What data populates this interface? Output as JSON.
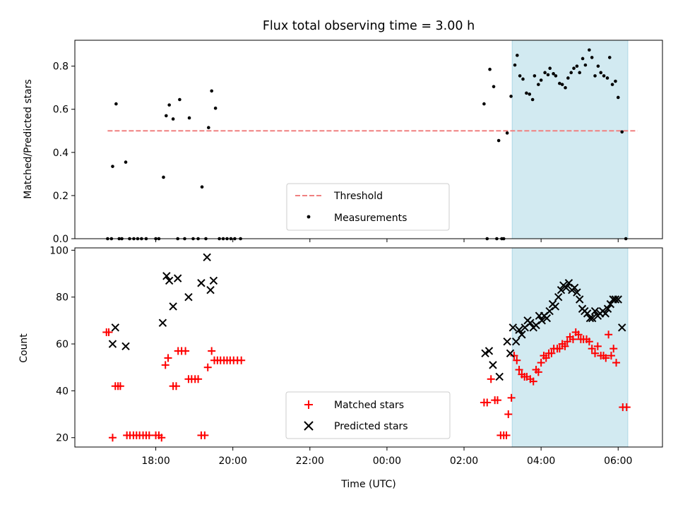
{
  "chart_data": [
    {
      "type": "scatter",
      "title": "Flux total observing time = 3.00 h",
      "xlabel": "",
      "ylabel": "Matched/Predicted stars",
      "ylim": [
        0,
        0.92
      ],
      "xlim_hours": [
        15.9,
        31.15
      ],
      "yticks": [
        "0.0",
        "0.2",
        "0.4",
        "0.6",
        "0.8"
      ],
      "xticks": [
        "18:00",
        "20:00",
        "22:00",
        "00:00",
        "02:00",
        "04:00",
        "06:00"
      ],
      "shaded_span": {
        "start": "03:15",
        "end": "06:15",
        "color": "#add8e6"
      },
      "threshold": {
        "name": "Threshold",
        "value": 0.5,
        "x_range": [
          "16:45",
          "06:30"
        ],
        "color": "#f08080"
      },
      "legend": {
        "placement": "lower-center",
        "entries": [
          "Threshold",
          "Measurements"
        ]
      },
      "series": [
        {
          "name": "Measurements",
          "color": "#000000",
          "marker": "dot",
          "points": [
            [
              16.75,
              0.0
            ],
            [
              16.85,
              0.0
            ],
            [
              16.88,
              0.335
            ],
            [
              16.97,
              0.625
            ],
            [
              17.05,
              0.0
            ],
            [
              17.12,
              0.0
            ],
            [
              17.22,
              0.355
            ],
            [
              17.32,
              0.0
            ],
            [
              17.43,
              0.0
            ],
            [
              17.53,
              0.0
            ],
            [
              17.63,
              0.0
            ],
            [
              17.75,
              0.0
            ],
            [
              18.0,
              0.0
            ],
            [
              18.08,
              0.0
            ],
            [
              18.2,
              0.285
            ],
            [
              18.27,
              0.57
            ],
            [
              18.35,
              0.62
            ],
            [
              18.45,
              0.555
            ],
            [
              18.57,
              0.0
            ],
            [
              18.62,
              0.645
            ],
            [
              18.75,
              0.0
            ],
            [
              18.87,
              0.56
            ],
            [
              18.97,
              0.0
            ],
            [
              19.1,
              0.0
            ],
            [
              19.2,
              0.24
            ],
            [
              19.3,
              0.0
            ],
            [
              19.37,
              0.515
            ],
            [
              19.45,
              0.685
            ],
            [
              19.55,
              0.605
            ],
            [
              19.65,
              0.0
            ],
            [
              19.75,
              0.0
            ],
            [
              19.85,
              0.0
            ],
            [
              19.95,
              0.0
            ],
            [
              20.05,
              0.0
            ],
            [
              20.2,
              0.0
            ],
            [
              26.52,
              0.625
            ],
            [
              26.6,
              0.0
            ],
            [
              26.67,
              0.785
            ],
            [
              26.77,
              0.705
            ],
            [
              26.85,
              0.0
            ],
            [
              26.9,
              0.455
            ],
            [
              26.98,
              0.0
            ],
            [
              27.03,
              0.0
            ],
            [
              27.12,
              0.49
            ],
            [
              27.22,
              0.66
            ],
            [
              27.32,
              0.805
            ],
            [
              27.38,
              0.85
            ],
            [
              27.45,
              0.755
            ],
            [
              27.53,
              0.74
            ],
            [
              27.62,
              0.675
            ],
            [
              27.7,
              0.67
            ],
            [
              27.78,
              0.645
            ],
            [
              27.83,
              0.755
            ],
            [
              27.93,
              0.715
            ],
            [
              28.0,
              0.735
            ],
            [
              28.1,
              0.77
            ],
            [
              28.18,
              0.76
            ],
            [
              28.23,
              0.79
            ],
            [
              28.32,
              0.765
            ],
            [
              28.38,
              0.755
            ],
            [
              28.48,
              0.72
            ],
            [
              28.55,
              0.715
            ],
            [
              28.63,
              0.7
            ],
            [
              28.7,
              0.745
            ],
            [
              28.78,
              0.77
            ],
            [
              28.85,
              0.79
            ],
            [
              28.93,
              0.8
            ],
            [
              29.0,
              0.77
            ],
            [
              29.08,
              0.835
            ],
            [
              29.15,
              0.805
            ],
            [
              29.25,
              0.875
            ],
            [
              29.32,
              0.84
            ],
            [
              29.4,
              0.755
            ],
            [
              29.48,
              0.8
            ],
            [
              29.55,
              0.77
            ],
            [
              29.63,
              0.755
            ],
            [
              29.72,
              0.745
            ],
            [
              29.78,
              0.84
            ],
            [
              29.85,
              0.715
            ],
            [
              29.93,
              0.73
            ],
            [
              30.0,
              0.655
            ],
            [
              30.1,
              0.495
            ],
            [
              30.2,
              0.0
            ]
          ]
        }
      ]
    },
    {
      "type": "scatter",
      "title": "",
      "xlabel": "Time (UTC)",
      "ylabel": "Count",
      "ylim": [
        16,
        101
      ],
      "xlim_hours": [
        15.9,
        31.15
      ],
      "yticks": [
        "20",
        "40",
        "60",
        "80",
        "100"
      ],
      "xticks": [
        "18:00",
        "20:00",
        "22:00",
        "00:00",
        "02:00",
        "04:00",
        "06:00"
      ],
      "shaded_span": {
        "start": "03:15",
        "end": "06:15",
        "color": "#add8e6"
      },
      "legend": {
        "placement": "lower-center",
        "entries": [
          "Matched stars",
          "Predicted stars"
        ]
      },
      "series": [
        {
          "name": "Matched stars",
          "color": "#ff0000",
          "marker": "plus",
          "points": [
            [
              16.72,
              65
            ],
            [
              16.78,
              65
            ],
            [
              16.88,
              20
            ],
            [
              16.95,
              42
            ],
            [
              17.02,
              42
            ],
            [
              17.08,
              42
            ],
            [
              17.25,
              21
            ],
            [
              17.33,
              21
            ],
            [
              17.42,
              21
            ],
            [
              17.5,
              21
            ],
            [
              17.58,
              21
            ],
            [
              17.67,
              21
            ],
            [
              17.75,
              21
            ],
            [
              17.83,
              21
            ],
            [
              18.0,
              21
            ],
            [
              18.08,
              21
            ],
            [
              18.15,
              20
            ],
            [
              18.25,
              51
            ],
            [
              18.32,
              54
            ],
            [
              18.45,
              42
            ],
            [
              18.53,
              42
            ],
            [
              18.58,
              57
            ],
            [
              18.67,
              57
            ],
            [
              18.77,
              57
            ],
            [
              18.85,
              45
            ],
            [
              18.93,
              45
            ],
            [
              19.02,
              45
            ],
            [
              19.1,
              45
            ],
            [
              19.18,
              21
            ],
            [
              19.27,
              21
            ],
            [
              19.35,
              50
            ],
            [
              19.45,
              57
            ],
            [
              19.52,
              53
            ],
            [
              19.6,
              53
            ],
            [
              19.68,
              53
            ],
            [
              19.77,
              53
            ],
            [
              19.85,
              53
            ],
            [
              19.93,
              53
            ],
            [
              20.02,
              53
            ],
            [
              20.12,
              53
            ],
            [
              20.22,
              53
            ],
            [
              26.52,
              35
            ],
            [
              26.6,
              35
            ],
            [
              26.7,
              45
            ],
            [
              26.8,
              36
            ],
            [
              26.87,
              36
            ],
            [
              26.95,
              21
            ],
            [
              27.03,
              21
            ],
            [
              27.1,
              21
            ],
            [
              27.15,
              30
            ],
            [
              27.23,
              37
            ],
            [
              27.3,
              55
            ],
            [
              27.37,
              53
            ],
            [
              27.43,
              49
            ],
            [
              27.5,
              47
            ],
            [
              27.57,
              46
            ],
            [
              27.63,
              46
            ],
            [
              27.72,
              45
            ],
            [
              27.8,
              44
            ],
            [
              27.87,
              49
            ],
            [
              27.93,
              48
            ],
            [
              28.0,
              52
            ],
            [
              28.07,
              55
            ],
            [
              28.13,
              54
            ],
            [
              28.2,
              56
            ],
            [
              28.27,
              56
            ],
            [
              28.33,
              58
            ],
            [
              28.42,
              58
            ],
            [
              28.48,
              58
            ],
            [
              28.55,
              60
            ],
            [
              28.62,
              59
            ],
            [
              28.68,
              61
            ],
            [
              28.75,
              63
            ],
            [
              28.83,
              62
            ],
            [
              28.9,
              65
            ],
            [
              28.97,
              64
            ],
            [
              29.03,
              62
            ],
            [
              29.1,
              62
            ],
            [
              29.18,
              62
            ],
            [
              29.25,
              61
            ],
            [
              29.32,
              58
            ],
            [
              29.4,
              56
            ],
            [
              29.47,
              59
            ],
            [
              29.55,
              55
            ],
            [
              29.62,
              55
            ],
            [
              29.68,
              54
            ],
            [
              29.75,
              64
            ],
            [
              29.82,
              55
            ],
            [
              29.88,
              58
            ],
            [
              29.95,
              52
            ],
            [
              30.12,
              33
            ],
            [
              30.22,
              33
            ]
          ]
        },
        {
          "name": "Predicted stars",
          "color": "#000000",
          "marker": "x",
          "points": [
            [
              16.88,
              60
            ],
            [
              16.95,
              67
            ],
            [
              17.22,
              59
            ],
            [
              18.18,
              69
            ],
            [
              18.28,
              89
            ],
            [
              18.35,
              87
            ],
            [
              18.45,
              76
            ],
            [
              18.57,
              88
            ],
            [
              18.85,
              80
            ],
            [
              19.18,
              86
            ],
            [
              19.33,
              97
            ],
            [
              19.42,
              83
            ],
            [
              19.5,
              87
            ],
            [
              26.55,
              56
            ],
            [
              26.65,
              57
            ],
            [
              26.75,
              51
            ],
            [
              26.92,
              46
            ],
            [
              27.12,
              61
            ],
            [
              27.2,
              56
            ],
            [
              27.27,
              67
            ],
            [
              27.35,
              61
            ],
            [
              27.43,
              66
            ],
            [
              27.5,
              64
            ],
            [
              27.58,
              67
            ],
            [
              27.65,
              70
            ],
            [
              27.72,
              69
            ],
            [
              27.8,
              67
            ],
            [
              27.87,
              68
            ],
            [
              27.95,
              72
            ],
            [
              28.02,
              70
            ],
            [
              28.08,
              72
            ],
            [
              28.15,
              71
            ],
            [
              28.22,
              74
            ],
            [
              28.3,
              77
            ],
            [
              28.37,
              76
            ],
            [
              28.45,
              80
            ],
            [
              28.52,
              83
            ],
            [
              28.58,
              85
            ],
            [
              28.65,
              84
            ],
            [
              28.72,
              86
            ],
            [
              28.8,
              83
            ],
            [
              28.87,
              84
            ],
            [
              28.93,
              82
            ],
            [
              29.0,
              79
            ],
            [
              29.07,
              75
            ],
            [
              29.13,
              74
            ],
            [
              29.2,
              73
            ],
            [
              29.27,
              71
            ],
            [
              29.33,
              71
            ],
            [
              29.4,
              74
            ],
            [
              29.47,
              72
            ],
            [
              29.53,
              73
            ],
            [
              29.6,
              74
            ],
            [
              29.67,
              73
            ],
            [
              29.73,
              75
            ],
            [
              29.8,
              77
            ],
            [
              29.87,
              79
            ],
            [
              29.93,
              79
            ],
            [
              30.0,
              79
            ],
            [
              30.1,
              67
            ]
          ]
        }
      ]
    }
  ]
}
